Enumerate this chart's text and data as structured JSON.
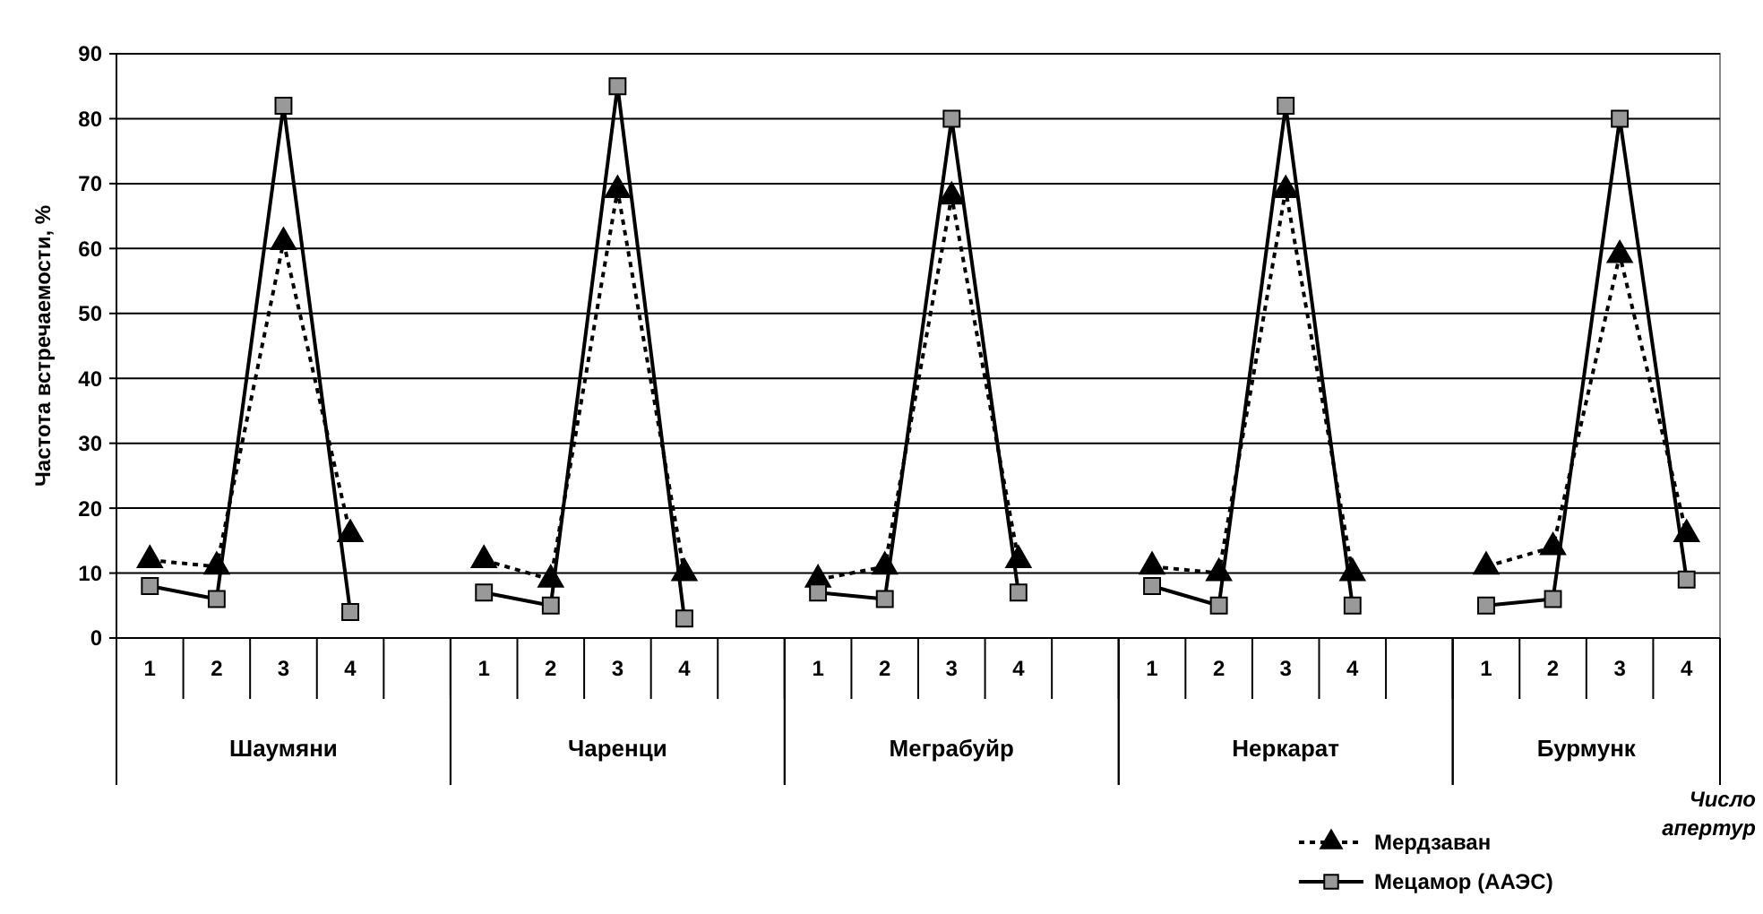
{
  "chart_data": {
    "type": "line",
    "ylabel": "Частота встречаемости, %",
    "xlabel": "Число апертур",
    "categories": [
      "1",
      "2",
      "3",
      "4",
      null,
      "1",
      "2",
      "3",
      "4",
      null,
      "1",
      "2",
      "3",
      "4",
      null,
      "1",
      "2",
      "3",
      "4",
      null,
      "1",
      "2",
      "3",
      "4"
    ],
    "annotations": [
      "Шаумяни",
      "Чаренци",
      "Меграбуйр",
      "Неркарат",
      "Бурмунк"
    ],
    "ylim": [
      0,
      90
    ],
    "yticks": [
      0,
      10,
      20,
      30,
      40,
      50,
      60,
      70,
      80,
      90
    ],
    "grid": "y",
    "legend": "bottom right",
    "series": [
      {
        "name": "Мердзаван",
        "color": "#000000",
        "marker": "triangle",
        "line_style": "dotted",
        "values": [
          12,
          11,
          61,
          16,
          null,
          12,
          9,
          69,
          10,
          null,
          9,
          11,
          68,
          12,
          null,
          11,
          10,
          69,
          10,
          null,
          11,
          14,
          59,
          16
        ]
      },
      {
        "name": "Мецамор (ААЭС)",
        "color": "#000000",
        "marker": "square",
        "line_style": "solid",
        "values": [
          8,
          6,
          82,
          4,
          null,
          7,
          5,
          85,
          3,
          null,
          7,
          6,
          80,
          7,
          null,
          8,
          5,
          82,
          5,
          null,
          5,
          6,
          80,
          9
        ]
      }
    ]
  }
}
